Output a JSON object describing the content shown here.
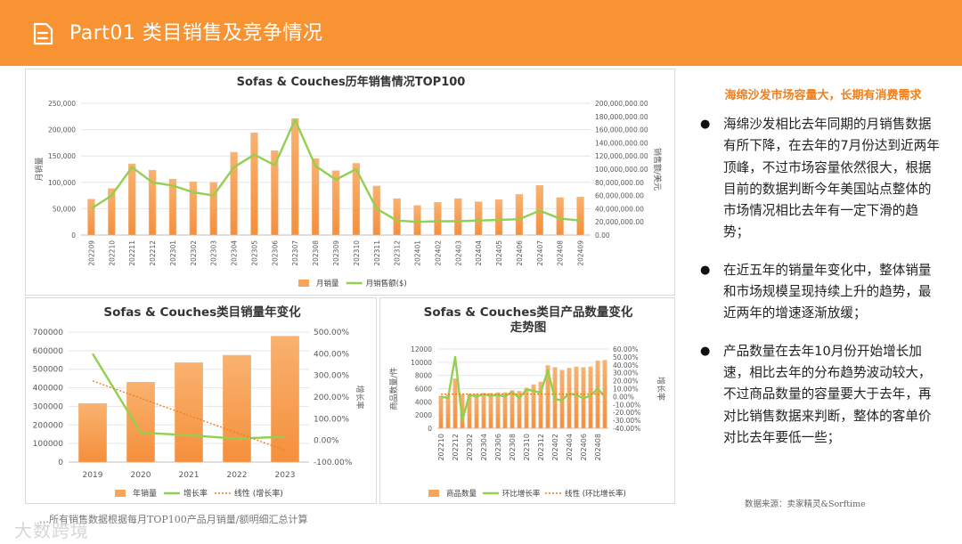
{
  "header": {
    "title": "Part01 类目销售及竞争情况"
  },
  "sidebar": {
    "title": "海绵沙发市场容量大，长期有消费需求",
    "bullets": [
      "海绵沙发相比去年同期的月销售数据有所下降，在去年的7月份达到近两年顶峰，不过市场容量依然很大，根据目前的数据判断今年美国站点整体的市场情况相比去年有一定下滑的趋势；",
      "在近五年的销量年变化中，整体销量和市场规模呈现持续上升的趋势，最近两年的增速逐渐放缓；",
      "产品数量在去年10月份开始增长加速，相比去年的分布趋势波动较大，不过商品数量的容量要大于去年，再对比销售数据来判断，整体的客单价对比去年要低一些；"
    ],
    "source": "数据来源：卖家精灵&Sorftime"
  },
  "footnote": "…所有销售数据根据每月TOP100产品月销量/额明细汇总计算",
  "watermark": "大数跨境",
  "colors": {
    "header": "#f79332",
    "bar": "#f5a65b",
    "line": "#92d050",
    "trend": "#f07f1c"
  },
  "chart_data": [
    {
      "type": "bar",
      "title": "Sofas & Couches历年销售情况TOP100",
      "categories": [
        "202209",
        "202210",
        "202211",
        "202212",
        "202301",
        "202302",
        "202303",
        "202304",
        "202305",
        "202306",
        "202307",
        "202308",
        "202309",
        "202310",
        "202311",
        "202312",
        "202401",
        "202402",
        "202403",
        "202404",
        "202405",
        "202406",
        "202407",
        "202408",
        "202409"
      ],
      "series": [
        {
          "name": "月销量",
          "kind": "bar",
          "axis": "left",
          "values": [
            68000,
            88000,
            135000,
            123000,
            106000,
            101000,
            100000,
            157000,
            194000,
            160000,
            221000,
            145000,
            122000,
            136000,
            93000,
            69000,
            56000,
            62000,
            69000,
            63000,
            67000,
            77000,
            94000,
            71000,
            72000
          ]
        },
        {
          "name": "月销售额($)",
          "kind": "line",
          "axis": "right",
          "values": [
            40000000,
            60000000,
            103000000,
            80000000,
            75000000,
            65000000,
            60000000,
            103000000,
            122000000,
            106000000,
            175000000,
            105000000,
            84000000,
            100000000,
            40000000,
            22000000,
            20000000,
            21000000,
            21000000,
            22000000,
            23000000,
            24000000,
            37000000,
            25000000,
            22000000
          ]
        }
      ],
      "ylabel": "月销量",
      "ylabel_right": "销售额/美元",
      "ylim": [
        0,
        250000
      ],
      "yticks": [
        "0",
        "50,000",
        "100,000",
        "150,000",
        "200,000",
        "250,000"
      ],
      "ylim_right": [
        0,
        200000000
      ],
      "yticks_right": [
        "0.00",
        "20,000,000.00",
        "40,000,000.00",
        "60,000,000.00",
        "80,000,000.00",
        "100,000,000.00",
        "120,000,000.00",
        "140,000,000.00",
        "160,000,000.00",
        "180,000,000.00",
        "200,000,000.00"
      ]
    },
    {
      "type": "bar",
      "title": "Sofas & Couches类目销量年变化",
      "categories": [
        "2019",
        "2020",
        "2021",
        "2022",
        "2023"
      ],
      "series": [
        {
          "name": "年销量",
          "kind": "bar",
          "axis": "left",
          "values": [
            315000,
            430000,
            535000,
            575000,
            678000
          ]
        },
        {
          "name": "增长率",
          "kind": "line",
          "axis": "right",
          "values": [
            400,
            36,
            24,
            8,
            17
          ]
        },
        {
          "name": "线性 (增长率)",
          "kind": "trend",
          "axis": "right",
          "values": [
            275,
            195,
            115,
            35,
            -45
          ]
        }
      ],
      "ylim": [
        0,
        700000
      ],
      "yticks": [
        "0",
        "100000",
        "200000",
        "300000",
        "400000",
        "500000",
        "600000",
        "700000"
      ],
      "ylabel_right": "增长率",
      "ylim_right": [
        -100,
        500
      ],
      "yticks_right": [
        "-100.00%",
        "0.00%",
        "100.00%",
        "200.00%",
        "300.00%",
        "400.00%",
        "500.00%"
      ]
    },
    {
      "type": "bar",
      "title": "Sofas & Couches类目产品数量变化走势图",
      "title_lines": [
        "Sofas & Couches类目产品数量变化",
        "走势图"
      ],
      "categories": [
        "202210",
        "202211",
        "202212",
        "202301",
        "202302",
        "202303",
        "202304",
        "202305",
        "202306",
        "202307",
        "202308",
        "202309",
        "202310",
        "202311",
        "202312",
        "202401",
        "202402",
        "202403",
        "202404",
        "202405",
        "202406",
        "202407",
        "202408",
        "202409"
      ],
      "tick_labels": [
        "202210",
        "",
        "202212",
        "",
        "202302",
        "",
        "202304",
        "",
        "202306",
        "",
        "202308",
        "",
        "202310",
        "",
        "202312",
        "",
        "202402",
        "",
        "202404",
        "",
        "202406",
        "",
        "202408",
        ""
      ],
      "series": [
        {
          "name": "商品数量",
          "kind": "bar",
          "axis": "left",
          "values": [
            4900,
            5000,
            7500,
            5100,
            5200,
            5200,
            5300,
            5300,
            5400,
            5400,
            5700,
            5600,
            6100,
            6600,
            7000,
            9500,
            9200,
            8800,
            9100,
            9300,
            9200,
            9300,
            10200,
            10300
          ]
        },
        {
          "name": "环比增长率",
          "kind": "line",
          "axis": "right",
          "values": [
            0,
            -2,
            50,
            -30,
            2,
            0,
            3,
            1,
            2,
            0,
            6,
            -2,
            9,
            7,
            5,
            33,
            -3,
            -5,
            4,
            2,
            -2,
            1,
            10,
            0
          ]
        },
        {
          "name": "线性 (环比增长率)",
          "kind": "trend",
          "axis": "right",
          "values": [
            3,
            3,
            3,
            3,
            3,
            3,
            3,
            3,
            3,
            3,
            3,
            3,
            3,
            3,
            3,
            3,
            3,
            3,
            3,
            3,
            3,
            3,
            3,
            3
          ]
        }
      ],
      "ylabel": "商品数量/件",
      "ylim": [
        0,
        12000
      ],
      "yticks": [
        "0",
        "2000",
        "4000",
        "6000",
        "8000",
        "10000",
        "12000"
      ],
      "ylabel_right": "增长率",
      "ylim_right": [
        -40,
        60
      ],
      "yticks_right": [
        "-40.00%",
        "-30.00%",
        "-20.00%",
        "-10.00%",
        "0.00%",
        "10.00%",
        "20.00%",
        "30.00%",
        "40.00%",
        "50.00%",
        "60.00%"
      ]
    }
  ]
}
